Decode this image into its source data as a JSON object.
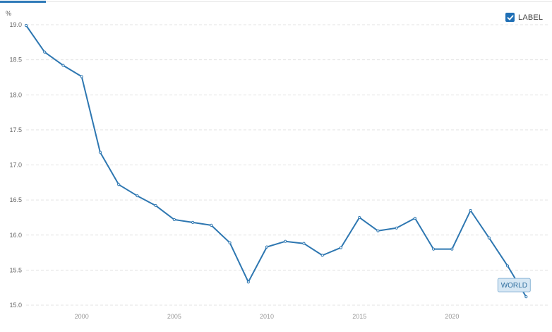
{
  "legend": {
    "label": "LABEL",
    "checked": true,
    "check_icon": "check-icon"
  },
  "colors": {
    "series": "#2e77b1",
    "legend_box": "#1f6fb5",
    "tab": "#2f7ab8"
  },
  "chart_data": {
    "type": "line",
    "ylabel": "%",
    "xlabel": "",
    "ylim": [
      15.0,
      19.0
    ],
    "y_ticks": [
      "15.0",
      "15.5",
      "16.0",
      "16.5",
      "17.0",
      "17.5",
      "18.0",
      "18.5",
      "19.0"
    ],
    "x_ticks": [
      "2000",
      "2005",
      "2010",
      "2015",
      "2020"
    ],
    "grid": true,
    "legend_position": "top-right",
    "series": [
      {
        "name": "WORLD",
        "x": [
          1997,
          1998,
          1999,
          2000,
          2001,
          2002,
          2003,
          2004,
          2005,
          2006,
          2007,
          2008,
          2009,
          2010,
          2011,
          2012,
          2013,
          2014,
          2015,
          2016,
          2017,
          2018,
          2019,
          2020,
          2021,
          2022,
          2023,
          2024
        ],
        "values": [
          18.99,
          18.61,
          18.42,
          18.26,
          17.18,
          16.72,
          16.56,
          16.42,
          16.22,
          16.18,
          16.14,
          15.89,
          15.33,
          15.83,
          15.91,
          15.88,
          15.71,
          15.82,
          16.25,
          16.06,
          16.1,
          16.24,
          15.8,
          15.8,
          16.35,
          15.96,
          15.56,
          15.12
        ]
      }
    ]
  }
}
